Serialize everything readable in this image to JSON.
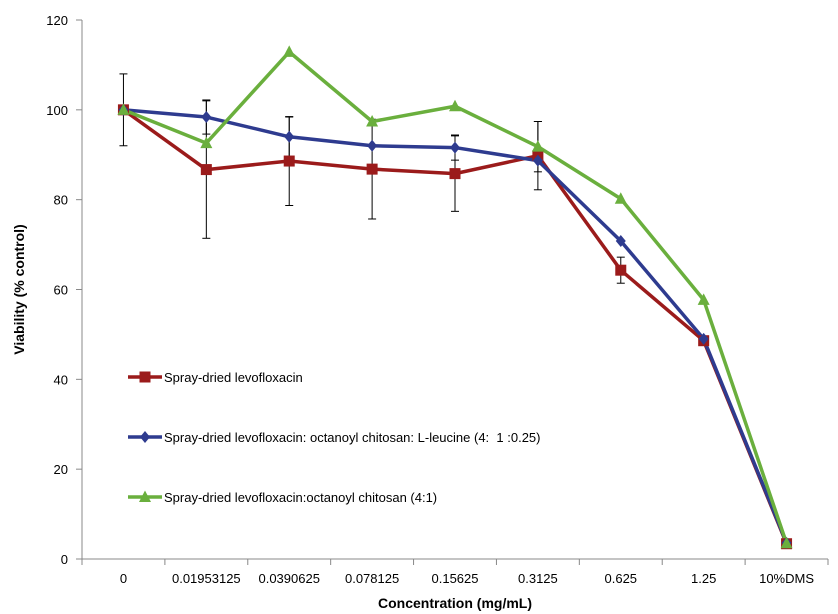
{
  "chart_data": {
    "type": "line",
    "xlabel": "Concentration (mg/mL)",
    "ylabel": "Viability (% control)",
    "categories": [
      "0",
      "0.01953125",
      "0.0390625",
      "0.078125",
      "0.15625",
      "0.3125",
      "0.625",
      "1.25",
      "10%DMS"
    ],
    "ylim": [
      0,
      120
    ],
    "yticks": [
      0,
      20,
      40,
      60,
      80,
      100,
      120
    ],
    "grid": false,
    "legend_position": "inside-left",
    "series": [
      {
        "name": "Spray-dried levofloxacin",
        "color": "#9b1b1b",
        "marker": "square",
        "values": [
          100,
          86.7,
          88.6,
          86.8,
          85.8,
          89.8,
          64.3,
          48.6,
          3.4
        ],
        "error": [
          8,
          15.3,
          9.9,
          11.1,
          8.4,
          7.6,
          2.9,
          null,
          null
        ]
      },
      {
        "name": "Spray-dried levofloxacin: octanoyl chitosan: L-leucine (4:  1 :0.25)",
        "color": "#2e3b8f",
        "marker": "diamond",
        "values": [
          100,
          98.4,
          94,
          92,
          91.6,
          88.7,
          70.8,
          49,
          3.6
        ],
        "error": [
          null,
          3.8,
          4.4,
          null,
          2.8,
          null,
          null,
          null,
          null
        ]
      },
      {
        "name": "Spray-dried levofloxacin:octanoyl chitosan (4:1)",
        "color": "#6aaf3d",
        "marker": "triangle",
        "values": [
          100,
          92.6,
          112.9,
          97.4,
          100.8,
          91.8,
          80.2,
          57.7,
          3.5
        ],
        "error": [
          null,
          null,
          null,
          null,
          null,
          5.6,
          null,
          null,
          null
        ]
      }
    ]
  }
}
